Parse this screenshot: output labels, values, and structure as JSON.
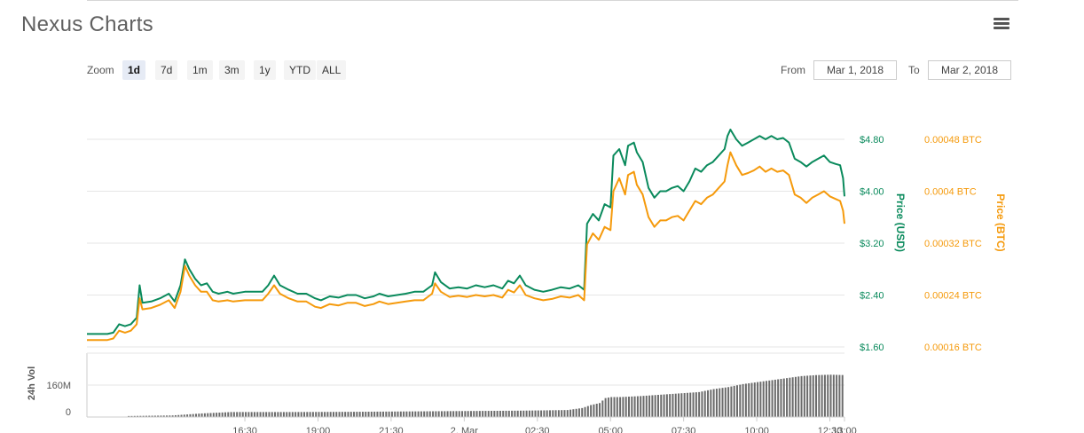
{
  "header": {
    "title": "Nexus Charts"
  },
  "toolbar": {
    "zoom_label": "Zoom",
    "zoom_buttons": [
      "1d",
      "7d",
      "1m",
      "3m",
      "1y",
      "YTD",
      "ALL"
    ],
    "active_zoom": "1d",
    "from_label": "From",
    "from_value": "Mar 1, 2018",
    "to_label": "To",
    "to_value": "Mar 2, 2018"
  },
  "chart_data": {
    "type": "line",
    "y_left": {
      "label": "Price (USD)",
      "ticks": [
        "$1.60",
        "$2.40",
        "$3.20",
        "$4.00",
        "$4.80"
      ],
      "range": [
        1.6,
        4.8
      ],
      "color": "#0a8a5c"
    },
    "y_right": {
      "label": "Price (BTC)",
      "ticks": [
        "0.00016 BTC",
        "0.00024 BTC",
        "0.00032 BTC",
        "0.0004 BTC",
        "0.00048 BTC"
      ],
      "range": [
        0.00016,
        0.00048
      ],
      "color": "#f59a0c"
    },
    "volume_axis": {
      "label": "24h Vol",
      "ticks": [
        "160M",
        "0"
      ]
    },
    "x_ticks": [
      "16:30",
      "19:00",
      "21:30",
      "2. Mar",
      "02:30",
      "05:00",
      "07:30",
      "10:00",
      "12:30",
      "13:00"
    ],
    "x_tick_hours": [
      2.5,
      5.0,
      7.5,
      10.0,
      12.5,
      15.0,
      17.5,
      20.0,
      22.5,
      23.0
    ],
    "hours_start": -2.9,
    "hours_end": 23.0,
    "grid": true,
    "series": [
      {
        "name": "Price (USD)",
        "color": "#0a8a5c",
        "points": [
          [
            -2.9,
            1.8
          ],
          [
            -2.6,
            1.8
          ],
          [
            -2.2,
            1.8
          ],
          [
            -2.0,
            1.82
          ],
          [
            -1.8,
            1.95
          ],
          [
            -1.6,
            1.92
          ],
          [
            -1.4,
            1.95
          ],
          [
            -1.2,
            2.05
          ],
          [
            -1.1,
            2.55
          ],
          [
            -1.0,
            2.28
          ],
          [
            -0.7,
            2.3
          ],
          [
            -0.4,
            2.35
          ],
          [
            -0.1,
            2.42
          ],
          [
            0.1,
            2.3
          ],
          [
            0.3,
            2.55
          ],
          [
            0.45,
            2.95
          ],
          [
            0.6,
            2.8
          ],
          [
            0.8,
            2.65
          ],
          [
            1.0,
            2.55
          ],
          [
            1.2,
            2.58
          ],
          [
            1.4,
            2.45
          ],
          [
            1.6,
            2.42
          ],
          [
            1.9,
            2.45
          ],
          [
            2.1,
            2.42
          ],
          [
            2.5,
            2.45
          ],
          [
            2.8,
            2.45
          ],
          [
            3.1,
            2.45
          ],
          [
            3.3,
            2.55
          ],
          [
            3.5,
            2.7
          ],
          [
            3.7,
            2.55
          ],
          [
            4.0,
            2.48
          ],
          [
            4.3,
            2.42
          ],
          [
            4.6,
            2.42
          ],
          [
            4.9,
            2.35
          ],
          [
            5.1,
            2.32
          ],
          [
            5.4,
            2.38
          ],
          [
            5.7,
            2.36
          ],
          [
            6.0,
            2.4
          ],
          [
            6.3,
            2.4
          ],
          [
            6.6,
            2.35
          ],
          [
            6.9,
            2.38
          ],
          [
            7.1,
            2.42
          ],
          [
            7.4,
            2.38
          ],
          [
            7.7,
            2.4
          ],
          [
            8.0,
            2.42
          ],
          [
            8.3,
            2.45
          ],
          [
            8.6,
            2.45
          ],
          [
            8.9,
            2.55
          ],
          [
            9.0,
            2.75
          ],
          [
            9.2,
            2.6
          ],
          [
            9.5,
            2.5
          ],
          [
            9.8,
            2.52
          ],
          [
            10.1,
            2.5
          ],
          [
            10.4,
            2.55
          ],
          [
            10.7,
            2.52
          ],
          [
            11.0,
            2.55
          ],
          [
            11.3,
            2.5
          ],
          [
            11.5,
            2.62
          ],
          [
            11.7,
            2.58
          ],
          [
            11.9,
            2.7
          ],
          [
            12.1,
            2.55
          ],
          [
            12.4,
            2.48
          ],
          [
            12.7,
            2.45
          ],
          [
            13.0,
            2.48
          ],
          [
            13.3,
            2.52
          ],
          [
            13.6,
            2.5
          ],
          [
            13.9,
            2.55
          ],
          [
            14.1,
            2.48
          ],
          [
            14.2,
            3.5
          ],
          [
            14.4,
            3.65
          ],
          [
            14.6,
            3.55
          ],
          [
            14.8,
            3.8
          ],
          [
            15.0,
            3.75
          ],
          [
            15.1,
            4.55
          ],
          [
            15.3,
            4.65
          ],
          [
            15.5,
            4.4
          ],
          [
            15.6,
            4.7
          ],
          [
            15.8,
            4.75
          ],
          [
            15.9,
            4.6
          ],
          [
            16.1,
            4.45
          ],
          [
            16.3,
            4.05
          ],
          [
            16.5,
            3.9
          ],
          [
            16.7,
            4.0
          ],
          [
            16.9,
            4.0
          ],
          [
            17.1,
            4.05
          ],
          [
            17.3,
            4.08
          ],
          [
            17.5,
            4.0
          ],
          [
            17.7,
            4.15
          ],
          [
            17.9,
            4.35
          ],
          [
            18.1,
            4.3
          ],
          [
            18.3,
            4.4
          ],
          [
            18.5,
            4.45
          ],
          [
            18.7,
            4.55
          ],
          [
            18.9,
            4.65
          ],
          [
            19.0,
            4.85
          ],
          [
            19.1,
            4.95
          ],
          [
            19.3,
            4.8
          ],
          [
            19.5,
            4.7
          ],
          [
            19.7,
            4.75
          ],
          [
            19.9,
            4.8
          ],
          [
            20.1,
            4.85
          ],
          [
            20.3,
            4.8
          ],
          [
            20.5,
            4.85
          ],
          [
            20.7,
            4.8
          ],
          [
            20.9,
            4.82
          ],
          [
            21.1,
            4.75
          ],
          [
            21.3,
            4.5
          ],
          [
            21.5,
            4.45
          ],
          [
            21.7,
            4.38
          ],
          [
            21.9,
            4.45
          ],
          [
            22.1,
            4.5
          ],
          [
            22.3,
            4.55
          ],
          [
            22.5,
            4.45
          ],
          [
            22.7,
            4.42
          ],
          [
            22.85,
            4.4
          ],
          [
            22.95,
            4.2
          ],
          [
            23.0,
            3.92
          ]
        ]
      },
      {
        "name": "Price (BTC)",
        "color": "#f59a0c",
        "points": [
          [
            -2.9,
            0.0001707
          ],
          [
            -2.6,
            0.0001707
          ],
          [
            -2.2,
            0.0001707
          ],
          [
            -2.0,
            0.000173
          ],
          [
            -1.8,
            0.000185
          ],
          [
            -1.6,
            0.000182
          ],
          [
            -1.4,
            0.000185
          ],
          [
            -1.2,
            0.000195
          ],
          [
            -1.1,
            0.000235
          ],
          [
            -1.0,
            0.000218
          ],
          [
            -0.7,
            0.00022
          ],
          [
            -0.4,
            0.000225
          ],
          [
            -0.1,
            0.000232
          ],
          [
            0.1,
            0.00022
          ],
          [
            0.3,
            0.000245
          ],
          [
            0.45,
            0.000285
          ],
          [
            0.6,
            0.00027
          ],
          [
            0.8,
            0.000255
          ],
          [
            1.0,
            0.000245
          ],
          [
            1.2,
            0.000245
          ],
          [
            1.4,
            0.000232
          ],
          [
            1.6,
            0.00023
          ],
          [
            1.9,
            0.000232
          ],
          [
            2.1,
            0.00023
          ],
          [
            2.5,
            0.000232
          ],
          [
            2.8,
            0.000232
          ],
          [
            3.1,
            0.000232
          ],
          [
            3.3,
            0.000242
          ],
          [
            3.5,
            0.000255
          ],
          [
            3.7,
            0.000242
          ],
          [
            4.0,
            0.000235
          ],
          [
            4.3,
            0.00023
          ],
          [
            4.6,
            0.00023
          ],
          [
            4.9,
            0.000222
          ],
          [
            5.1,
            0.00022
          ],
          [
            5.4,
            0.000226
          ],
          [
            5.7,
            0.000224
          ],
          [
            6.0,
            0.000228
          ],
          [
            6.3,
            0.000228
          ],
          [
            6.6,
            0.000223
          ],
          [
            6.9,
            0.000226
          ],
          [
            7.1,
            0.00023
          ],
          [
            7.4,
            0.000226
          ],
          [
            7.7,
            0.000228
          ],
          [
            8.0,
            0.00023
          ],
          [
            8.3,
            0.000232
          ],
          [
            8.6,
            0.000232
          ],
          [
            8.9,
            0.000242
          ],
          [
            9.0,
            0.000258
          ],
          [
            9.2,
            0.000245
          ],
          [
            9.5,
            0.000237
          ],
          [
            9.8,
            0.000239
          ],
          [
            10.1,
            0.000237
          ],
          [
            10.4,
            0.00024
          ],
          [
            10.7,
            0.000238
          ],
          [
            11.0,
            0.00024
          ],
          [
            11.3,
            0.000236
          ],
          [
            11.5,
            0.000248
          ],
          [
            11.7,
            0.000244
          ],
          [
            11.9,
            0.000255
          ],
          [
            12.1,
            0.00024
          ],
          [
            12.4,
            0.000235
          ],
          [
            12.7,
            0.000232
          ],
          [
            13.0,
            0.000234
          ],
          [
            13.3,
            0.000238
          ],
          [
            13.6,
            0.000236
          ],
          [
            13.9,
            0.00024
          ],
          [
            14.1,
            0.000232
          ],
          [
            14.2,
            0.000318
          ],
          [
            14.4,
            0.000335
          ],
          [
            14.6,
            0.000325
          ],
          [
            14.8,
            0.000345
          ],
          [
            15.0,
            0.00034
          ],
          [
            15.1,
            0.0004
          ],
          [
            15.3,
            0.00042
          ],
          [
            15.5,
            0.000395
          ],
          [
            15.6,
            0.000425
          ],
          [
            15.8,
            0.00043
          ],
          [
            15.9,
            0.00041
          ],
          [
            16.1,
            0.000395
          ],
          [
            16.3,
            0.00036
          ],
          [
            16.5,
            0.000345
          ],
          [
            16.7,
            0.000355
          ],
          [
            16.9,
            0.000355
          ],
          [
            17.1,
            0.00036
          ],
          [
            17.3,
            0.000362
          ],
          [
            17.5,
            0.000355
          ],
          [
            17.7,
            0.00037
          ],
          [
            17.9,
            0.000385
          ],
          [
            18.1,
            0.00038
          ],
          [
            18.3,
            0.00039
          ],
          [
            18.5,
            0.000395
          ],
          [
            18.7,
            0.000405
          ],
          [
            18.9,
            0.000415
          ],
          [
            19.0,
            0.00044
          ],
          [
            19.1,
            0.00046
          ],
          [
            19.3,
            0.00044
          ],
          [
            19.5,
            0.000425
          ],
          [
            19.7,
            0.000428
          ],
          [
            19.9,
            0.000432
          ],
          [
            20.1,
            0.000438
          ],
          [
            20.3,
            0.00043
          ],
          [
            20.5,
            0.000435
          ],
          [
            20.7,
            0.00043
          ],
          [
            20.9,
            0.000432
          ],
          [
            21.1,
            0.000425
          ],
          [
            21.3,
            0.000395
          ],
          [
            21.5,
            0.00039
          ],
          [
            21.7,
            0.000382
          ],
          [
            21.9,
            0.00039
          ],
          [
            22.1,
            0.000395
          ],
          [
            22.3,
            0.0004
          ],
          [
            22.5,
            0.000392
          ],
          [
            22.7,
            0.000388
          ],
          [
            22.85,
            0.000385
          ],
          [
            22.95,
            0.00037
          ],
          [
            23.0,
            0.00035
          ]
        ]
      }
    ],
    "volume": {
      "unit": "M",
      "max_tick": 160,
      "points": [
        [
          -1.5,
          5
        ],
        [
          0.0,
          8
        ],
        [
          1.0,
          18
        ],
        [
          2.0,
          25
        ],
        [
          4.0,
          25
        ],
        [
          6.0,
          26
        ],
        [
          8.0,
          28
        ],
        [
          10.0,
          30
        ],
        [
          12.0,
          32
        ],
        [
          13.5,
          35
        ],
        [
          14.0,
          45
        ],
        [
          14.3,
          60
        ],
        [
          14.6,
          70
        ],
        [
          14.8,
          95
        ],
        [
          15.0,
          100
        ],
        [
          15.3,
          100
        ],
        [
          16.0,
          105
        ],
        [
          17.0,
          115
        ],
        [
          18.0,
          125
        ],
        [
          18.5,
          140
        ],
        [
          19.0,
          150
        ],
        [
          19.5,
          165
        ],
        [
          20.0,
          175
        ],
        [
          20.5,
          185
        ],
        [
          21.0,
          195
        ],
        [
          21.5,
          205
        ],
        [
          22.0,
          210
        ],
        [
          22.5,
          212
        ],
        [
          23.0,
          210
        ]
      ]
    }
  }
}
